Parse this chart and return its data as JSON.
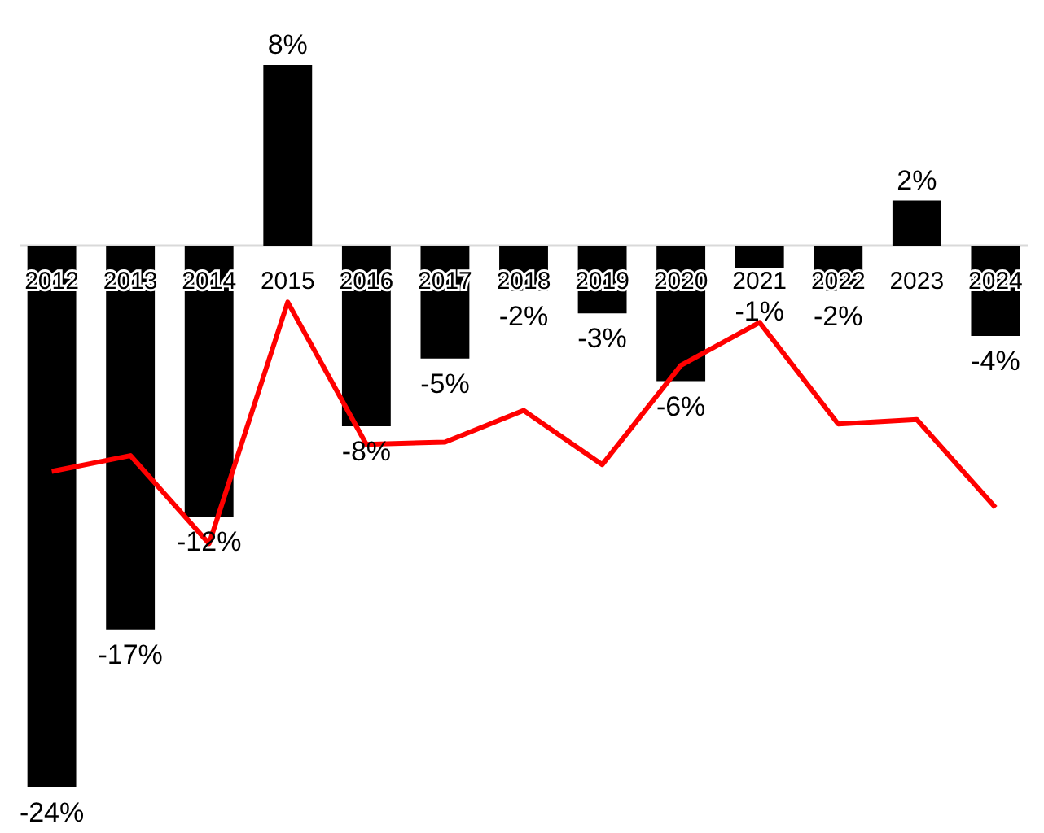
{
  "chart_data": {
    "type": "bar",
    "categories": [
      "2012",
      "2013",
      "2014",
      "2015",
      "2016",
      "2017",
      "2018",
      "2019",
      "2020",
      "2021",
      "2022",
      "2023",
      "2024"
    ],
    "series": [
      {
        "color": "#000000",
        "values": [
          -24,
          -17,
          -12,
          8,
          -8,
          -5,
          -2,
          -3,
          -6,
          -1,
          -2,
          2,
          -4
        ],
        "value_labels": [
          "-24%",
          "-17%",
          "-12%",
          "8%",
          "-8%",
          "-5%",
          "-2%",
          "-3%",
          "-6%",
          "-1%",
          "-2%",
          "2%",
          "-4%"
        ]
      },
      {
        "type": "line",
        "color": "#ff0000",
        "values": [
          -10,
          -9.3,
          -13.2,
          -2.5,
          -8.8,
          -8.7,
          -7.3,
          -9.7,
          -5.3,
          -3.4,
          -7.9,
          -7.7,
          -11.6
        ]
      }
    ],
    "data_labels": false
  }
}
